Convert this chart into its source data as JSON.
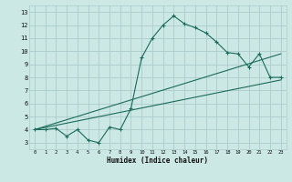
{
  "title": "",
  "xlabel": "Humidex (Indice chaleur)",
  "bg_color": "#cce8e4",
  "grid_color": "#aaccca",
  "line_color": "#1a6b5a",
  "xlim": [
    -0.5,
    23.5
  ],
  "ylim": [
    2.5,
    13.5
  ],
  "xticks": [
    0,
    1,
    2,
    3,
    4,
    5,
    6,
    7,
    8,
    9,
    10,
    11,
    12,
    13,
    14,
    15,
    16,
    17,
    18,
    19,
    20,
    21,
    22,
    23
  ],
  "yticks": [
    3,
    4,
    5,
    6,
    7,
    8,
    9,
    10,
    11,
    12,
    13
  ],
  "line1_x": [
    0,
    1,
    2,
    3,
    4,
    5,
    6,
    7,
    8,
    9,
    10,
    11,
    12,
    13,
    14,
    15,
    16,
    17,
    18,
    19,
    20,
    21,
    22,
    23
  ],
  "line1_y": [
    4.0,
    4.0,
    4.1,
    3.5,
    4.0,
    3.2,
    3.0,
    4.2,
    4.0,
    5.6,
    9.5,
    11.0,
    12.0,
    12.7,
    12.1,
    11.8,
    11.4,
    10.7,
    9.9,
    9.8,
    8.8,
    9.8,
    8.0,
    8.0
  ],
  "line2_x": [
    0,
    23
  ],
  "line2_y": [
    4.0,
    9.8
  ],
  "line3_x": [
    0,
    23
  ],
  "line3_y": [
    4.0,
    7.8
  ]
}
